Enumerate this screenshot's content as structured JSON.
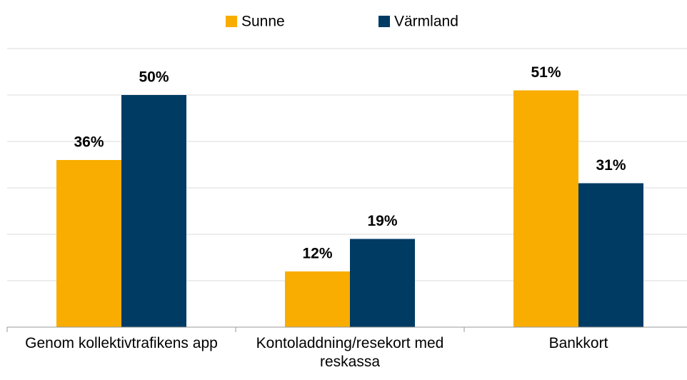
{
  "chart_data": {
    "type": "bar",
    "categories": [
      "Genom kollektivtrafikens app",
      "Kontoladdning/resekort med reskassa",
      "Bankkort"
    ],
    "series": [
      {
        "name": "Sunne",
        "color": "#f9ad00",
        "values": [
          36,
          12,
          51
        ],
        "value_labels": [
          "36%",
          "12%",
          "51%"
        ]
      },
      {
        "name": "Värmland",
        "color": "#003b64",
        "values": [
          50,
          19,
          31
        ],
        "value_labels": [
          "50%",
          "19%",
          "31%"
        ]
      }
    ],
    "ylim": [
      0,
      60
    ],
    "yticks": [
      0,
      10,
      20,
      30,
      40,
      50,
      60
    ],
    "grid": true,
    "legend": "top"
  }
}
